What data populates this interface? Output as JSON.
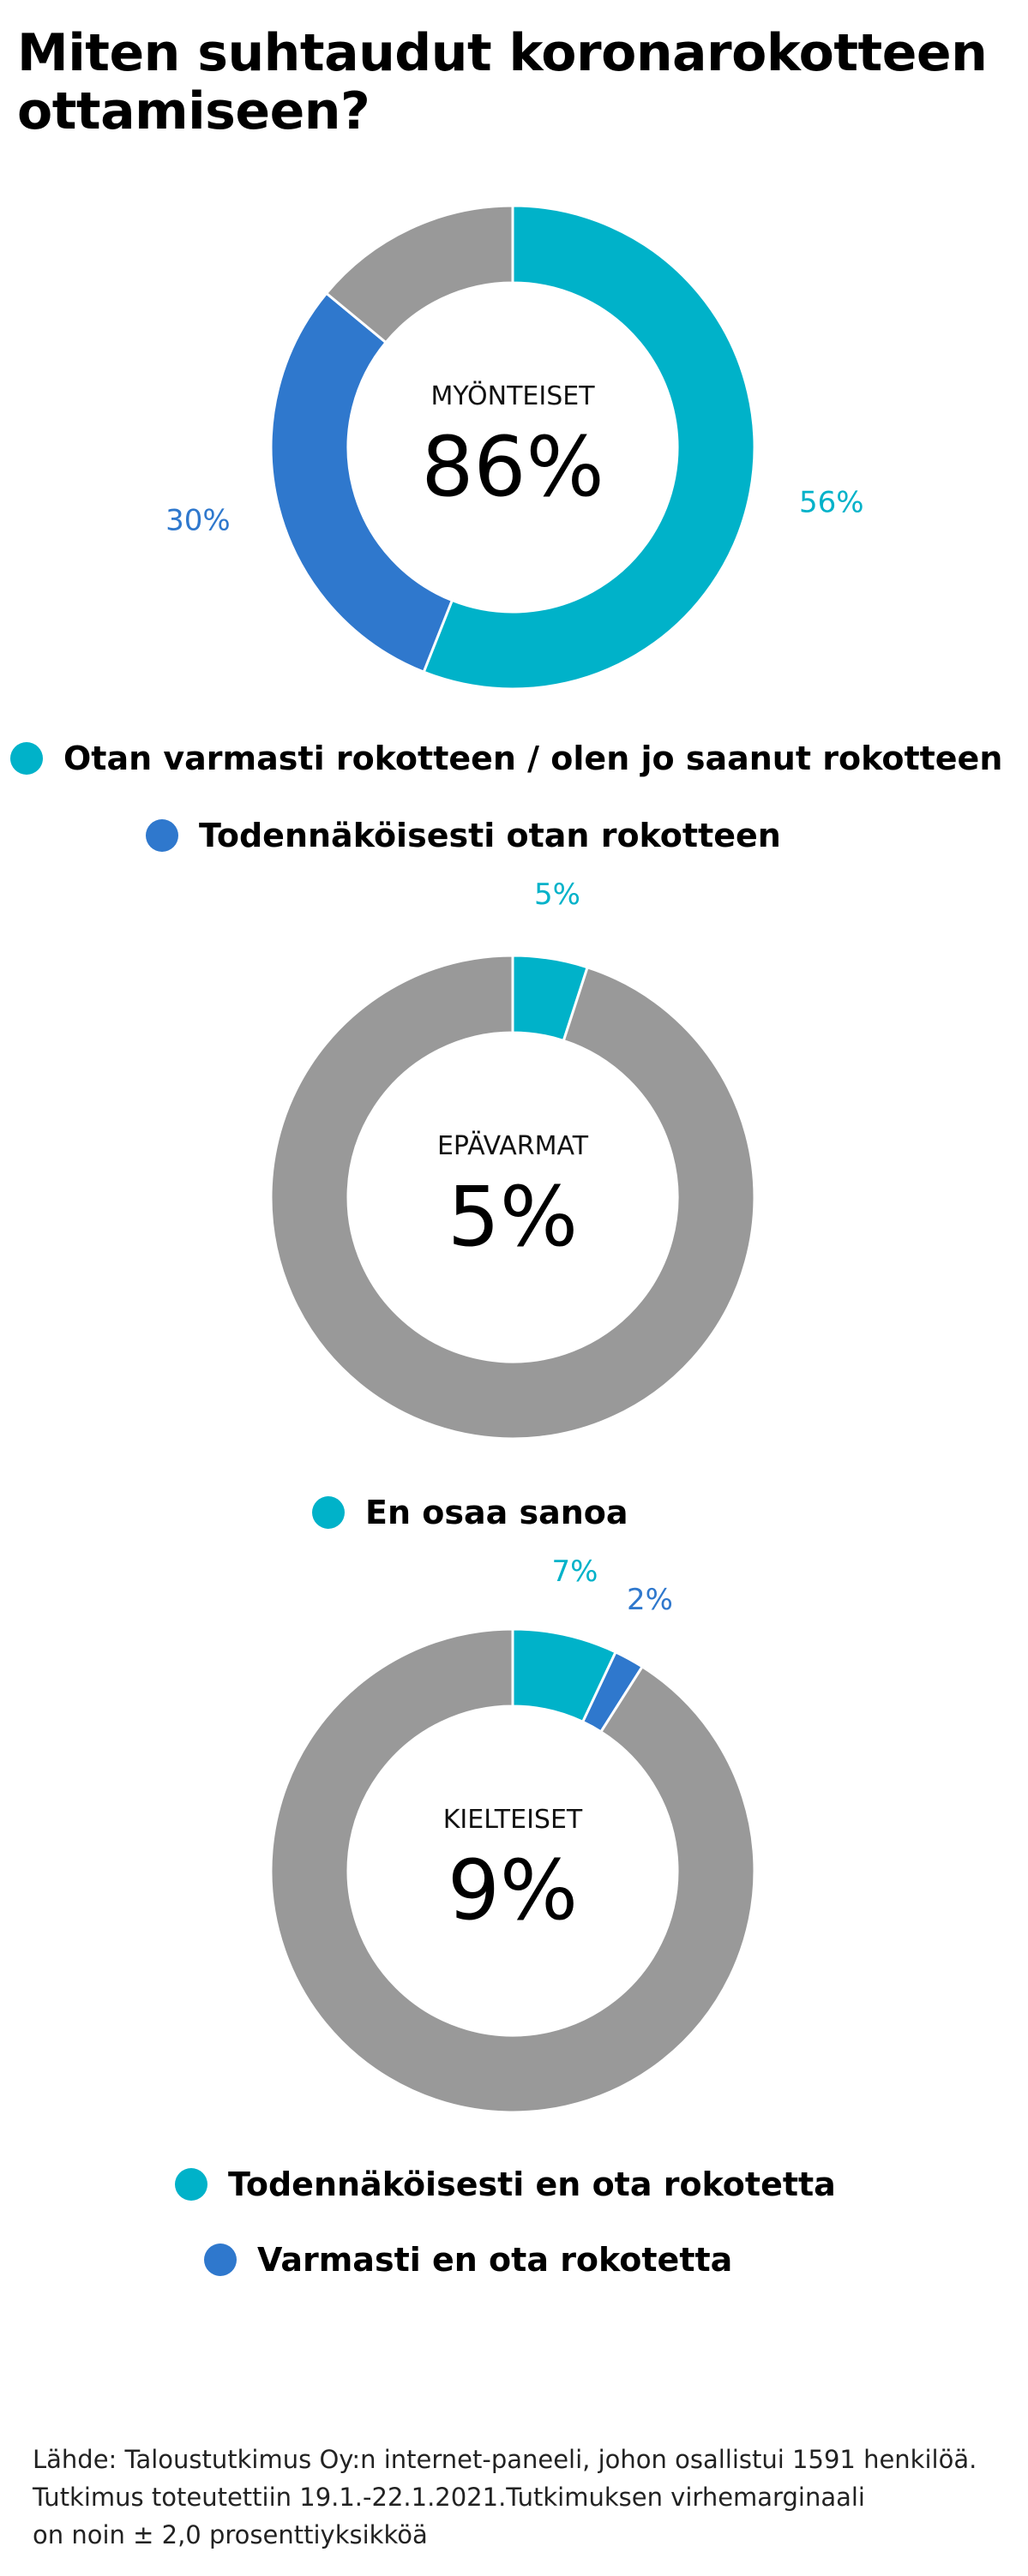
{
  "title": "Miten suhtaudut koronarokotteen ottamiseen?",
  "colors": {
    "cyan": "#00B2C9",
    "blue": "#2F78CD",
    "gray": "#999999"
  },
  "chart_data": [
    {
      "type": "pie",
      "center_label": "MYÖNTEISET",
      "center_value": "86%",
      "slices": [
        {
          "name": "Otan varmasti rokotteen / olen jo saanut rokotteen",
          "value": 56,
          "label": "56%",
          "color": "#00B2C9"
        },
        {
          "name": "Todennäköisesti otan rokotteen",
          "value": 30,
          "label": "30%",
          "color": "#2F78CD"
        },
        {
          "name": "",
          "value": 14,
          "label": "",
          "color": "#999999"
        }
      ],
      "legend": [
        {
          "label": "Otan varmasti rokotteen / olen jo saanut rokotteen",
          "color": "#00B2C9"
        },
        {
          "label": "Todennäköisesti otan rokotteen",
          "color": "#2F78CD"
        }
      ]
    },
    {
      "type": "pie",
      "center_label": "EPÄVARMAT",
      "center_value": "5%",
      "slices": [
        {
          "name": "En osaa sanoa",
          "value": 5,
          "label": "5%",
          "color": "#00B2C9"
        },
        {
          "name": "",
          "value": 95,
          "label": "",
          "color": "#999999"
        }
      ],
      "legend": [
        {
          "label": "En osaa sanoa",
          "color": "#00B2C9"
        }
      ]
    },
    {
      "type": "pie",
      "center_label": "KIELTEISET",
      "center_value": "9%",
      "slices": [
        {
          "name": "Todennäköisesti en ota rokotetta",
          "value": 7,
          "label": "7%",
          "color": "#00B2C9"
        },
        {
          "name": "Varmasti en ota rokotetta",
          "value": 2,
          "label": "2%",
          "color": "#2F78CD"
        },
        {
          "name": "",
          "value": 91,
          "label": "",
          "color": "#999999"
        }
      ],
      "legend": [
        {
          "label": "Todennäköisesti en ota rokotetta",
          "color": "#00B2C9"
        },
        {
          "label": "Varmasti en ota rokotetta",
          "color": "#2F78CD"
        }
      ]
    }
  ],
  "source": {
    "line1": "Lähde: Taloustutkimus Oy:n internet-paneeli, johon osallistui 1591 henkilöä.",
    "line2": "Tutkimus toteutettiin 19.1.-22.1.2021.Tutkimuksen virhemarginaali",
    "line3": "on noin ± 2,0 prosenttiyksikköä"
  }
}
